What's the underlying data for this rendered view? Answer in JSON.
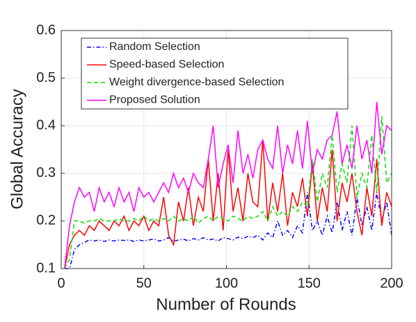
{
  "chart_data": {
    "type": "line",
    "xlabel": "Number of Rounds",
    "ylabel": "Global Accuracy",
    "xlim": [
      0,
      200
    ],
    "ylim": [
      0.1,
      0.6
    ],
    "xticks": [
      0,
      50,
      100,
      150,
      200
    ],
    "yticks": [
      0.1,
      0.2,
      0.3,
      0.4,
      0.5,
      0.6
    ],
    "grid": true,
    "legend": "upper left",
    "x": [
      2,
      5,
      8,
      11,
      14,
      17,
      20,
      23,
      26,
      29,
      32,
      35,
      38,
      41,
      44,
      47,
      50,
      53,
      56,
      59,
      62,
      65,
      68,
      71,
      74,
      77,
      80,
      83,
      86,
      89,
      92,
      95,
      98,
      101,
      104,
      107,
      110,
      113,
      116,
      119,
      122,
      125,
      128,
      131,
      134,
      137,
      140,
      143,
      146,
      149,
      152,
      155,
      158,
      161,
      164,
      167,
      170,
      173,
      176,
      179,
      182,
      185,
      188,
      191,
      194,
      197,
      200
    ],
    "series": [
      {
        "name": "Random Selection",
        "color": "#0000ff",
        "dash": "dashdot",
        "values": [
          0.1,
          0.1,
          0.14,
          0.15,
          0.155,
          0.16,
          0.158,
          0.16,
          0.157,
          0.16,
          0.158,
          0.16,
          0.159,
          0.16,
          0.157,
          0.16,
          0.158,
          0.16,
          0.162,
          0.158,
          0.16,
          0.165,
          0.157,
          0.16,
          0.162,
          0.158,
          0.163,
          0.16,
          0.165,
          0.16,
          0.162,
          0.158,
          0.165,
          0.163,
          0.16,
          0.166,
          0.163,
          0.168,
          0.165,
          0.17,
          0.16,
          0.175,
          0.165,
          0.2,
          0.17,
          0.18,
          0.165,
          0.19,
          0.175,
          0.26,
          0.18,
          0.2,
          0.17,
          0.21,
          0.175,
          0.24,
          0.18,
          0.22,
          0.17,
          0.25,
          0.19,
          0.23,
          0.18,
          0.26,
          0.2,
          0.24,
          0.17
        ]
      },
      {
        "name": "Speed-based Selection",
        "color": "#ff0000",
        "dash": "solid",
        "values": [
          0.1,
          0.15,
          0.17,
          0.18,
          0.17,
          0.19,
          0.18,
          0.2,
          0.19,
          0.18,
          0.2,
          0.19,
          0.21,
          0.18,
          0.2,
          0.19,
          0.21,
          0.18,
          0.2,
          0.19,
          0.25,
          0.17,
          0.15,
          0.24,
          0.2,
          0.27,
          0.19,
          0.25,
          0.22,
          0.33,
          0.2,
          0.3,
          0.18,
          0.35,
          0.22,
          0.27,
          0.2,
          0.3,
          0.24,
          0.23,
          0.37,
          0.2,
          0.28,
          0.22,
          0.3,
          0.19,
          0.26,
          0.23,
          0.29,
          0.21,
          0.32,
          0.2,
          0.27,
          0.22,
          0.35,
          0.2,
          0.28,
          0.24,
          0.3,
          0.22,
          0.17,
          0.27,
          0.21,
          0.33,
          0.19,
          0.26,
          0.23
        ]
      },
      {
        "name": "Weight divergence-based Selection",
        "color": "#00e000",
        "dash": "dashed",
        "values": [
          0.1,
          0.12,
          0.2,
          0.2,
          0.195,
          0.2,
          0.2,
          0.205,
          0.2,
          0.2,
          0.2,
          0.205,
          0.2,
          0.2,
          0.205,
          0.2,
          0.21,
          0.2,
          0.205,
          0.2,
          0.205,
          0.2,
          0.21,
          0.2,
          0.205,
          0.2,
          0.21,
          0.195,
          0.205,
          0.21,
          0.2,
          0.21,
          0.205,
          0.2,
          0.21,
          0.205,
          0.2,
          0.21,
          0.205,
          0.21,
          0.22,
          0.2,
          0.23,
          0.21,
          0.22,
          0.21,
          0.23,
          0.22,
          0.24,
          0.23,
          0.33,
          0.24,
          0.3,
          0.27,
          0.38,
          0.26,
          0.32,
          0.28,
          0.4,
          0.25,
          0.3,
          0.27,
          0.38,
          0.26,
          0.42,
          0.28,
          0.3
        ]
      },
      {
        "name": "Proposed Solution",
        "color": "#ff00ff",
        "dash": "solid",
        "values": [
          0.1,
          0.19,
          0.24,
          0.27,
          0.25,
          0.26,
          0.22,
          0.27,
          0.24,
          0.26,
          0.23,
          0.27,
          0.24,
          0.26,
          0.22,
          0.27,
          0.25,
          0.26,
          0.24,
          0.26,
          0.28,
          0.26,
          0.3,
          0.27,
          0.29,
          0.26,
          0.3,
          0.28,
          0.27,
          0.33,
          0.4,
          0.27,
          0.32,
          0.36,
          0.28,
          0.39,
          0.3,
          0.34,
          0.29,
          0.35,
          0.37,
          0.33,
          0.31,
          0.4,
          0.3,
          0.36,
          0.32,
          0.39,
          0.31,
          0.41,
          0.3,
          0.35,
          0.33,
          0.37,
          0.38,
          0.43,
          0.32,
          0.36,
          0.31,
          0.4,
          0.33,
          0.37,
          0.3,
          0.45,
          0.34,
          0.4,
          0.39
        ]
      }
    ]
  }
}
